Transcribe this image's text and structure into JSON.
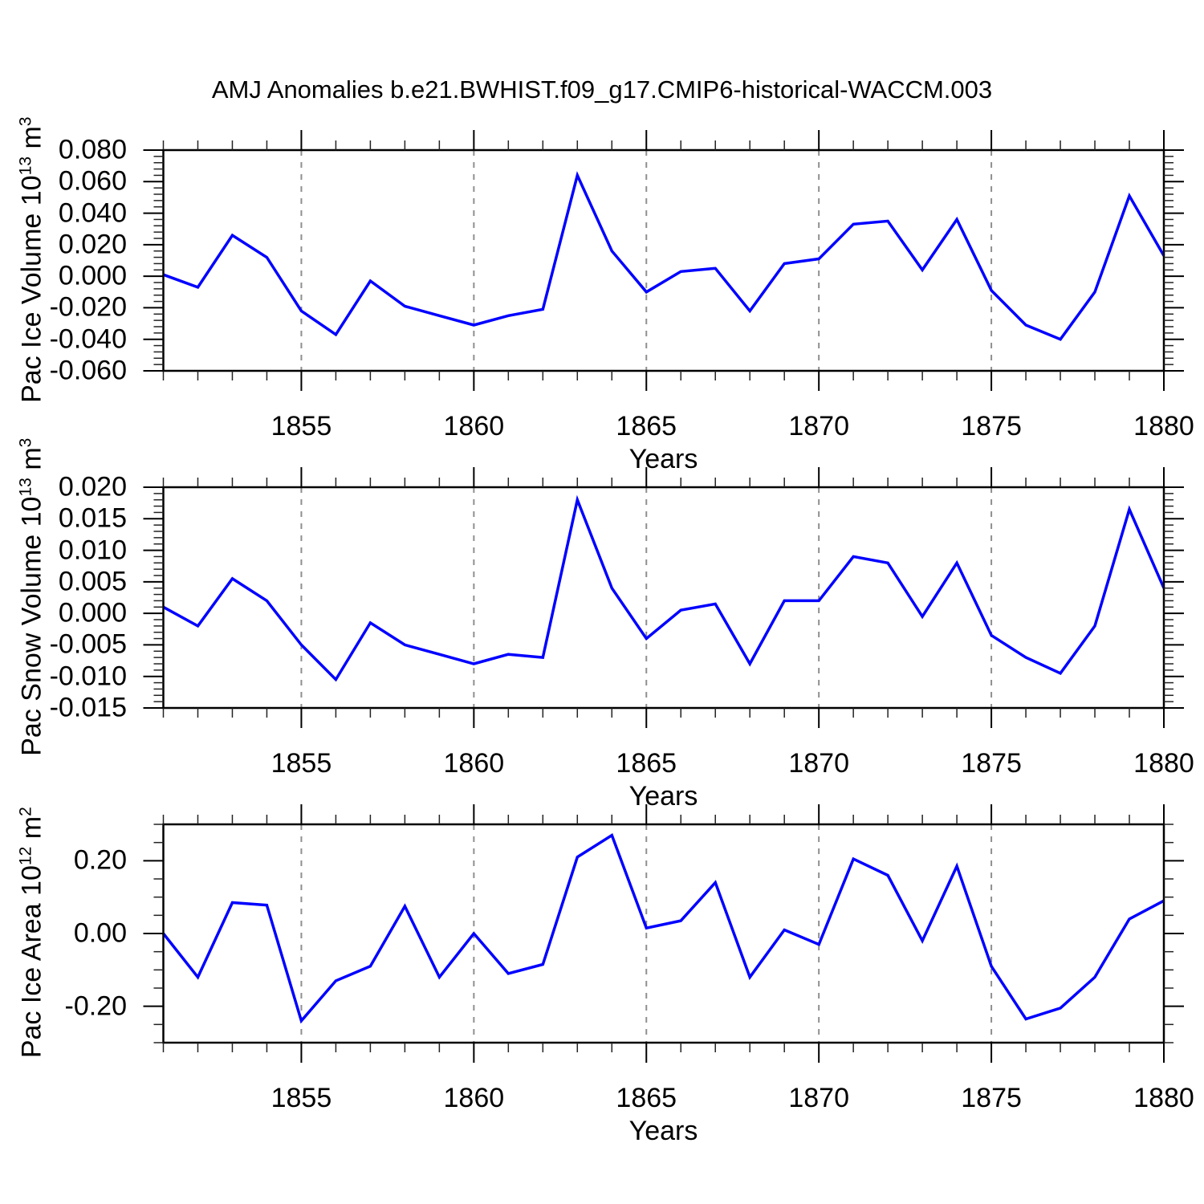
{
  "title": "AMJ Anomalies b.e21.BWHIST.f09_g17.CMIP6-historical-WACCM.003",
  "colors": {
    "line": "#0000ff",
    "frame": "#000000",
    "minor_tick": "#222222",
    "grid": "#8f8f8f",
    "background": "#ffffff"
  },
  "chart_data": [
    {
      "type": "line",
      "ylabel": {
        "pre": "Pac Ice Volume 10",
        "exp": "13",
        "unit": " m",
        "unit_exp": "3"
      },
      "xlabel": "Years",
      "xlim": [
        1851,
        1880
      ],
      "xticks": [
        1855,
        1860,
        1865,
        1870,
        1875,
        1880
      ],
      "xminor_step": 1,
      "grid_x": [
        1855,
        1860,
        1865,
        1870,
        1875
      ],
      "ylim": [
        -0.06,
        0.08
      ],
      "ytick_values": [
        0.08,
        0.06,
        0.04,
        0.02,
        0.0,
        -0.02,
        -0.04,
        -0.06
      ],
      "ytick_labels": [
        "0.080",
        "0.060",
        "0.040",
        "0.020",
        "0.000",
        "-0.020",
        "-0.040",
        "-0.060"
      ],
      "yminor_step": 0.004,
      "x": [
        1851,
        1852,
        1853,
        1854,
        1855,
        1856,
        1857,
        1858,
        1859,
        1860,
        1861,
        1862,
        1863,
        1864,
        1865,
        1866,
        1867,
        1868,
        1869,
        1870,
        1871,
        1872,
        1873,
        1874,
        1875,
        1876,
        1877,
        1878,
        1879,
        1880
      ],
      "values": [
        0.001,
        -0.007,
        0.026,
        0.012,
        -0.022,
        -0.037,
        -0.003,
        -0.019,
        -0.025,
        -0.031,
        -0.025,
        -0.021,
        0.064,
        0.016,
        -0.01,
        0.003,
        0.005,
        -0.022,
        0.008,
        0.011,
        0.033,
        0.035,
        0.004,
        0.036,
        -0.009,
        -0.031,
        -0.04,
        -0.01,
        0.051,
        0.013
      ]
    },
    {
      "type": "line",
      "ylabel": {
        "pre": "Pac Snow Volume 10",
        "exp": "13",
        "unit": " m",
        "unit_exp": "3"
      },
      "xlabel": "Years",
      "xlim": [
        1851,
        1880
      ],
      "xticks": [
        1855,
        1860,
        1865,
        1870,
        1875,
        1880
      ],
      "xminor_step": 1,
      "grid_x": [
        1855,
        1860,
        1865,
        1870,
        1875
      ],
      "ylim": [
        -0.015,
        0.02
      ],
      "ytick_values": [
        0.02,
        0.015,
        0.01,
        0.005,
        0.0,
        -0.005,
        -0.01,
        -0.015
      ],
      "ytick_labels": [
        "0.020",
        "0.015",
        "0.010",
        "0.005",
        "0.000",
        "-0.005",
        "-0.010",
        "-0.015"
      ],
      "yminor_step": 0.001,
      "x": [
        1851,
        1852,
        1853,
        1854,
        1855,
        1856,
        1857,
        1858,
        1859,
        1860,
        1861,
        1862,
        1863,
        1864,
        1865,
        1866,
        1867,
        1868,
        1869,
        1870,
        1871,
        1872,
        1873,
        1874,
        1875,
        1876,
        1877,
        1878,
        1879,
        1880
      ],
      "values": [
        0.001,
        -0.002,
        0.0055,
        0.002,
        -0.005,
        -0.0105,
        -0.0015,
        -0.005,
        -0.0065,
        -0.008,
        -0.0065,
        -0.007,
        0.018,
        0.004,
        -0.004,
        0.0005,
        0.0015,
        -0.008,
        0.002,
        0.002,
        0.009,
        0.008,
        -0.0005,
        0.008,
        -0.0035,
        -0.007,
        -0.0095,
        -0.002,
        0.0165,
        0.004
      ]
    },
    {
      "type": "line",
      "ylabel": {
        "pre": "Pac Ice Area 10",
        "exp": "12",
        "unit": " m",
        "unit_exp": "2"
      },
      "xlabel": "Years",
      "xlim": [
        1851,
        1880
      ],
      "xticks": [
        1855,
        1860,
        1865,
        1870,
        1875,
        1880
      ],
      "xminor_step": 1,
      "grid_x": [
        1855,
        1860,
        1865,
        1870,
        1875
      ],
      "ylim": [
        -0.3,
        0.3
      ],
      "ytick_values": [
        0.2,
        0.0,
        -0.2
      ],
      "ytick_labels": [
        "0.20",
        "0.00",
        "-0.20"
      ],
      "yminor_step": 0.05,
      "x": [
        1851,
        1852,
        1853,
        1854,
        1855,
        1856,
        1857,
        1858,
        1859,
        1860,
        1861,
        1862,
        1863,
        1864,
        1865,
        1866,
        1867,
        1868,
        1869,
        1870,
        1871,
        1872,
        1873,
        1874,
        1875,
        1876,
        1877,
        1878,
        1879,
        1880
      ],
      "values": [
        0.0,
        -0.12,
        0.085,
        0.078,
        -0.24,
        -0.13,
        -0.09,
        0.075,
        -0.12,
        0.0,
        -0.11,
        -0.085,
        0.21,
        0.27,
        0.015,
        0.035,
        0.14,
        -0.12,
        0.01,
        -0.03,
        0.205,
        0.16,
        -0.02,
        0.185,
        -0.09,
        -0.235,
        -0.205,
        -0.12,
        0.04,
        0.09
      ]
    }
  ]
}
